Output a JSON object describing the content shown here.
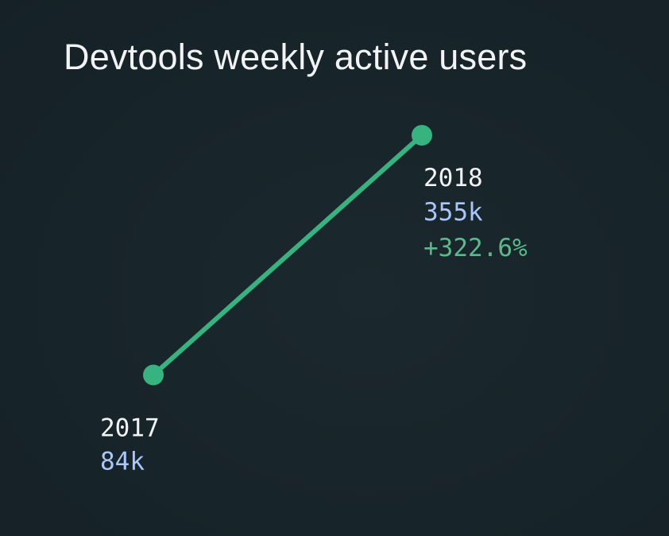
{
  "chart_data": {
    "type": "line",
    "title": "Devtools weekly active users",
    "x": [
      "2017",
      "2018"
    ],
    "series": [
      {
        "values": [
          84,
          355
        ],
        "value_labels": [
          "84k",
          "355k"
        ],
        "color": "#36b37e"
      }
    ],
    "change_label": "+322.6%",
    "ylim": [
      0,
      400
    ],
    "grid": false,
    "colors": {
      "background": "#172429",
      "title": "#f1f3f4",
      "year_label": "#f1f3f4",
      "value_label": "#a8c7fa",
      "change_label": "#5bb98c",
      "line": "#36b37e"
    }
  }
}
